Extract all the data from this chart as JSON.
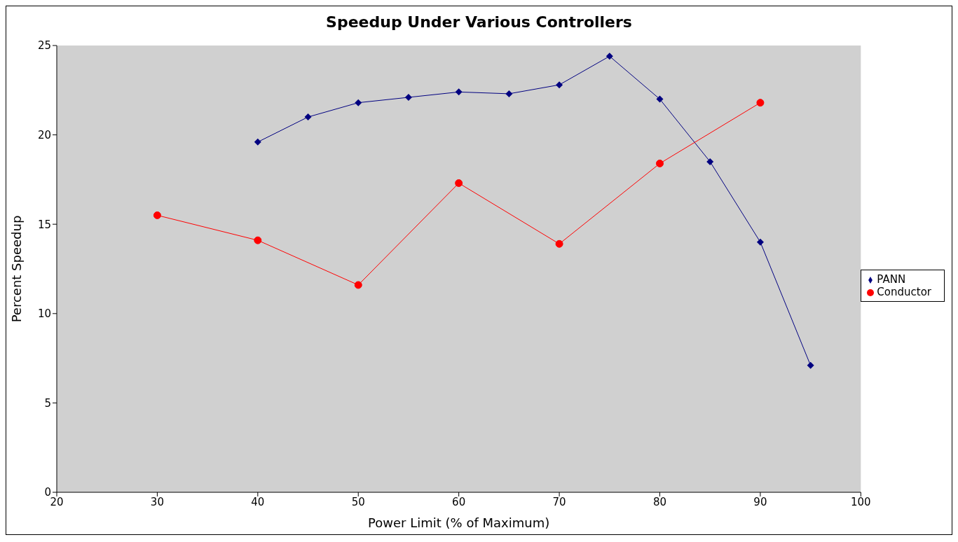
{
  "chart_data": {
    "type": "line",
    "title": "Speedup Under Various Controllers",
    "xlabel": "Power Limit (% of Maximum)",
    "ylabel": "Percent Speedup",
    "xlim": [
      20,
      100
    ],
    "xticks": [
      20,
      30,
      40,
      50,
      60,
      70,
      80,
      90,
      100
    ],
    "ylim": [
      0,
      25
    ],
    "yticks": [
      0,
      5,
      10,
      15,
      20,
      25
    ],
    "grid": false,
    "legend": "right",
    "series": [
      {
        "name": "PANN",
        "color": "#000080",
        "marker": "diamond",
        "x": [
          40,
          45,
          50,
          55,
          60,
          65,
          70,
          75,
          80,
          85,
          90,
          95
        ],
        "values": [
          19.6,
          21.0,
          21.8,
          22.1,
          22.4,
          22.3,
          22.8,
          24.4,
          22.0,
          18.5,
          14.0,
          7.1
        ]
      },
      {
        "name": "Conductor",
        "color": "#ff0000",
        "marker": "circle",
        "x": [
          30,
          40,
          50,
          60,
          70,
          80,
          90
        ],
        "values": [
          15.5,
          14.1,
          11.6,
          17.3,
          13.9,
          18.4,
          21.8
        ]
      }
    ]
  }
}
